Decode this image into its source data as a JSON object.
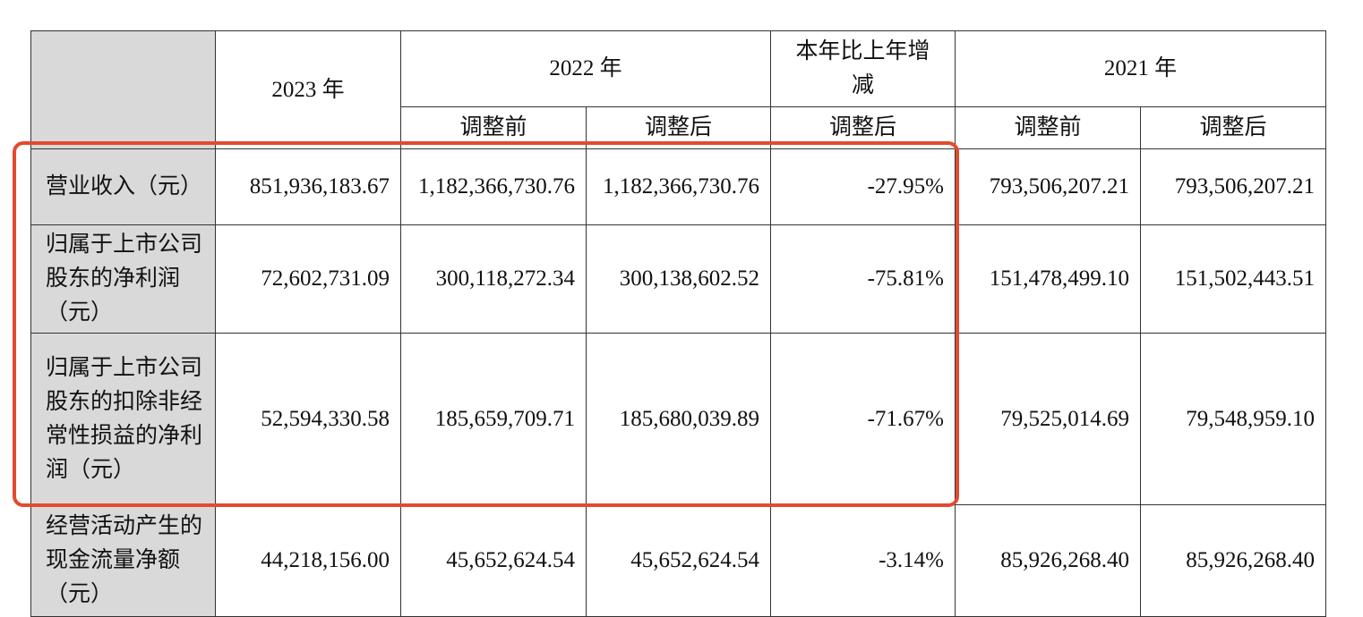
{
  "header": {
    "col_2023": "2023 年",
    "col_2022": "2022 年",
    "col_change": "本年比上年增减",
    "col_2021": "2021 年",
    "before_adjust": "调整前",
    "after_adjust": "调整后"
  },
  "rows": [
    {
      "label": "营业收入（元）",
      "v2023": "851,936,183.67",
      "v2022_before": "1,182,366,730.76",
      "v2022_after": "1,182,366,730.76",
      "change": "-27.95%",
      "v2021_before": "793,506,207.21",
      "v2021_after": "793,506,207.21"
    },
    {
      "label": "归属于上市公司股东的净利润（元）",
      "v2023": "72,602,731.09",
      "v2022_before": "300,118,272.34",
      "v2022_after": "300,138,602.52",
      "change": "-75.81%",
      "v2021_before": "151,478,499.10",
      "v2021_after": "151,502,443.51"
    },
    {
      "label": "归属于上市公司股东的扣除非经常性损益的净利润（元）",
      "v2023": "52,594,330.58",
      "v2022_before": "185,659,709.71",
      "v2022_after": "185,680,039.89",
      "change": "-71.67%",
      "v2021_before": "79,525,014.69",
      "v2021_after": "79,548,959.10"
    },
    {
      "label": "经营活动产生的现金流量净额（元）",
      "v2023": "44,218,156.00",
      "v2022_before": "45,652,624.54",
      "v2022_after": "45,652,624.54",
      "change": "-3.14%",
      "v2021_before": "85,926,268.40",
      "v2021_after": "85,926,268.40"
    }
  ],
  "colors": {
    "highlight_border": "#e34a2f",
    "header_fill": "#d9d9d9"
  }
}
